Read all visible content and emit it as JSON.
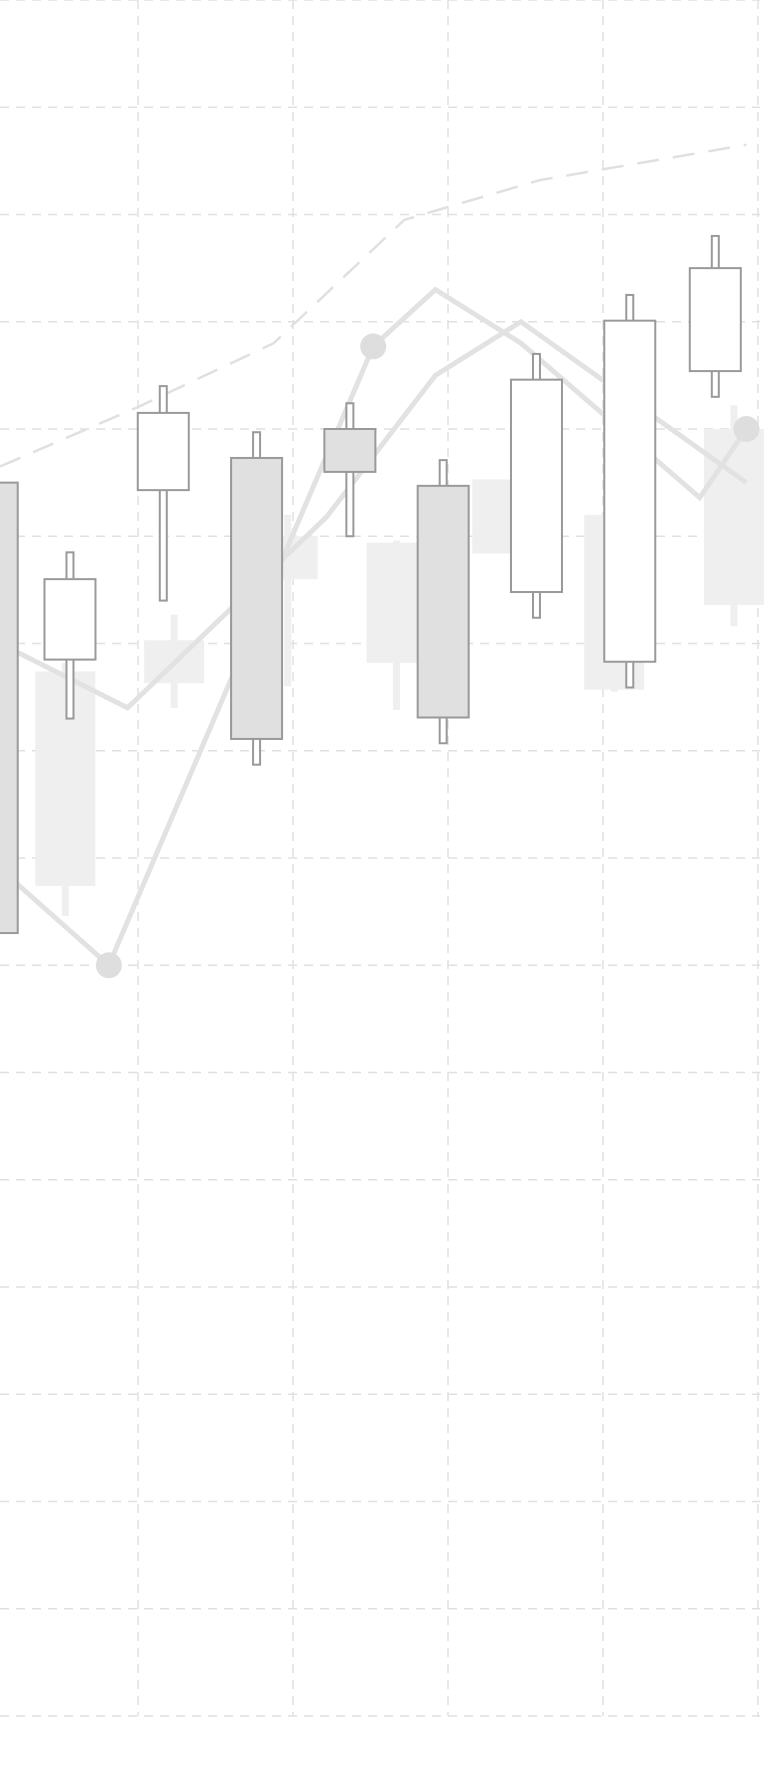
{
  "chart_data": {
    "type": "candlestick",
    "title": "",
    "xlabel": "",
    "ylabel": "",
    "grid": true,
    "ylim": [
      0,
      16
    ],
    "colors": {
      "grid": "#e0e0e0",
      "up_fill": "#ffffff",
      "down_fill": "#e0e0e0",
      "candle_stroke": "#999999",
      "ghost": "#efefef",
      "line": "#e2e2e2",
      "dashed": "#e0e0e0"
    },
    "candles": [
      {
        "x": -0.05,
        "open": 11.5,
        "high": 11.6,
        "low": 7.2,
        "close": 7.3
      },
      {
        "x": 0.45,
        "open": 9.85,
        "high": 10.85,
        "low": 9.3,
        "close": 10.6
      },
      {
        "x": 1.05,
        "open": 11.43,
        "high": 12.4,
        "low": 10.4,
        "close": 12.15
      },
      {
        "x": 1.65,
        "open": 11.73,
        "high": 11.97,
        "low": 8.87,
        "close": 9.11
      },
      {
        "x": 2.25,
        "open": 12.0,
        "high": 12.24,
        "low": 11.0,
        "close": 11.6
      },
      {
        "x": 2.85,
        "open": 11.47,
        "high": 11.71,
        "low": 9.07,
        "close": 9.31
      },
      {
        "x": 3.45,
        "open": 10.48,
        "high": 12.7,
        "low": 10.24,
        "close": 12.46
      },
      {
        "x": 4.05,
        "open": 9.83,
        "high": 13.25,
        "low": 9.59,
        "close": 13.01
      },
      {
        "x": 4.6,
        "open": 12.54,
        "high": 13.8,
        "low": 12.3,
        "close": 13.5
      }
    ],
    "ghost_candles": [
      {
        "x": 0.42,
        "open": 7.74,
        "high": 9.82,
        "low": 7.46,
        "close": 9.74
      },
      {
        "x": 1.12,
        "open": 10.03,
        "high": 10.27,
        "low": 9.4,
        "close": 9.63
      },
      {
        "x": 1.85,
        "open": 10.6,
        "high": 11.2,
        "low": 9.6,
        "close": 11.0
      },
      {
        "x": 2.55,
        "open": 9.82,
        "high": 10.96,
        "low": 9.38,
        "close": 10.94
      },
      {
        "x": 3.23,
        "open": 10.84,
        "high": 11.0,
        "low": 11.0,
        "close": 11.53
      },
      {
        "x": 3.95,
        "open": 9.57,
        "high": 11.2,
        "low": 9.55,
        "close": 11.2
      },
      {
        "x": 4.72,
        "open": 10.36,
        "high": 12.22,
        "low": 10.16,
        "close": 12.0
      }
    ],
    "series": [
      {
        "x": [
          0.0,
          0.7,
          2.4,
          2.8,
          3.35,
          4.5,
          4.8
        ],
        "values": [
          7.9,
          7.0,
          12.77,
          13.3,
          12.8,
          11.36,
          12.0
        ],
        "markers": [
          false,
          true,
          true,
          false,
          false,
          false,
          true
        ]
      },
      {
        "x": [
          0.0,
          0.82,
          2.1,
          2.8,
          3.35,
          4.8
        ],
        "values": [
          10.0,
          9.4,
          11.18,
          12.5,
          13.0,
          11.5
        ],
        "markers": [
          false,
          false,
          false,
          false,
          false,
          false
        ]
      }
    ],
    "dashed_series": {
      "x": [
        0.0,
        0.88,
        1.76,
        2.6,
        3.47,
        4.8
      ],
      "values": [
        11.65,
        12.2,
        12.8,
        13.95,
        14.32,
        14.65
      ]
    }
  }
}
